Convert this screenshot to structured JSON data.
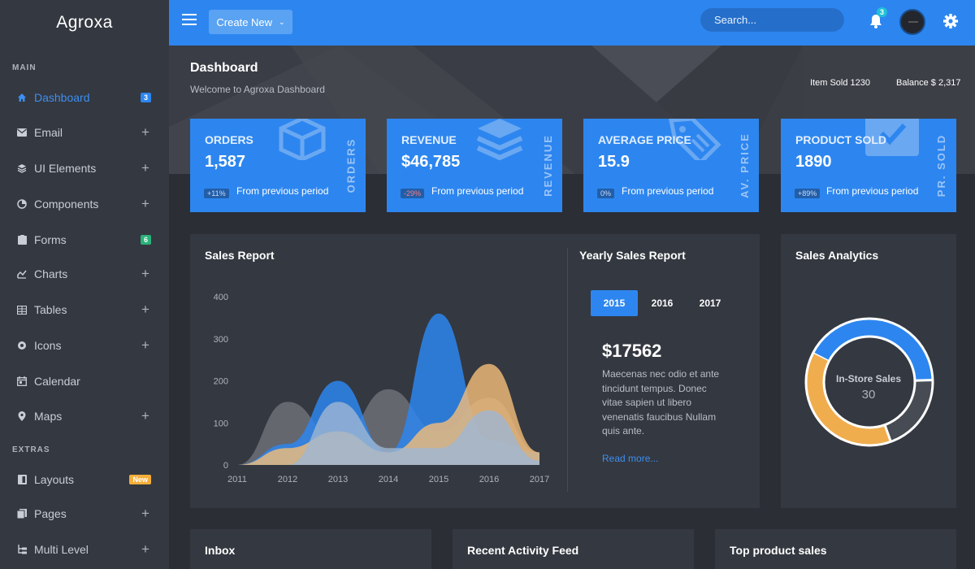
{
  "brand": "Agroxa",
  "sidebar": {
    "main_label": "MAIN",
    "extras_label": "EXTRAS",
    "items": [
      {
        "label": "Dashboard",
        "badge": "3"
      },
      {
        "label": "Email"
      },
      {
        "label": "UI Elements"
      },
      {
        "label": "Components"
      },
      {
        "label": "Forms",
        "badge": "6"
      },
      {
        "label": "Charts"
      },
      {
        "label": "Tables"
      },
      {
        "label": "Icons"
      },
      {
        "label": "Calendar"
      },
      {
        "label": "Maps"
      },
      {
        "label": "Layouts",
        "badge": "New"
      },
      {
        "label": "Pages"
      },
      {
        "label": "Multi Level"
      }
    ]
  },
  "topbar": {
    "create_label": "Create New",
    "search_placeholder": "Search...",
    "notifications": "3"
  },
  "header": {
    "title": "Dashboard",
    "subtitle": "Welcome to Agroxa Dashboard",
    "item_sold": "Item Sold 1230",
    "balance": "Balance $ 2,317"
  },
  "cards": [
    {
      "title": "ORDERS",
      "value": "1,587",
      "change": "+11%",
      "footer": "From previous period",
      "side": "ORDERS"
    },
    {
      "title": "REVENUE",
      "value": "$46,785",
      "change": "-29%",
      "footer": "From previous period",
      "side": "REVENUE"
    },
    {
      "title": "AVERAGE PRICE",
      "value": "15.9",
      "change": "0%",
      "footer": "From previous period",
      "side": "AV. PRICE"
    },
    {
      "title": "PRODUCT SOLD",
      "value": "1890",
      "change": "+89%",
      "footer": "From previous period",
      "side": "PR. SOLD"
    }
  ],
  "sales_report": {
    "title": "Sales Report",
    "yearly_title": "Yearly Sales Report",
    "years": [
      "2015",
      "2016",
      "2017"
    ],
    "active_year": "2015",
    "amount": "$17562",
    "description": "Maecenas nec odio et ante tincidunt tempus. Donec vitae sapien ut libero venenatis faucibus Nullam quis ante.",
    "read_more": "Read more..."
  },
  "analytics": {
    "title": "Sales Analytics",
    "center_label": "In-Store Sales",
    "center_value": "30"
  },
  "bottom": {
    "inbox": "Inbox",
    "activity": "Recent Activity Feed",
    "top_products": "Top product sales"
  },
  "chart_data": [
    {
      "type": "area",
      "categories": [
        "2011",
        "2012",
        "2013",
        "2014",
        "2015",
        "2016",
        "2017"
      ],
      "ylim": [
        0,
        400
      ],
      "yticks": [
        0,
        100,
        200,
        300,
        400
      ],
      "series": [
        {
          "color": "#74777e",
          "values": [
            0,
            150,
            60,
            180,
            80,
            160,
            30
          ]
        },
        {
          "color": "#2d86ef",
          "values": [
            0,
            50,
            200,
            30,
            360,
            60,
            30
          ]
        },
        {
          "color": "#f5be78",
          "values": [
            0,
            40,
            80,
            30,
            100,
            240,
            30
          ]
        },
        {
          "color": "#9fb6d3",
          "values": [
            0,
            0,
            150,
            40,
            40,
            130,
            10
          ]
        }
      ]
    },
    {
      "type": "pie",
      "slices": [
        {
          "value": 42,
          "color": "#2d86ef"
        },
        {
          "value": 20,
          "color": "#474b53"
        },
        {
          "value": 38,
          "color": "#f0ad4e"
        }
      ]
    }
  ]
}
